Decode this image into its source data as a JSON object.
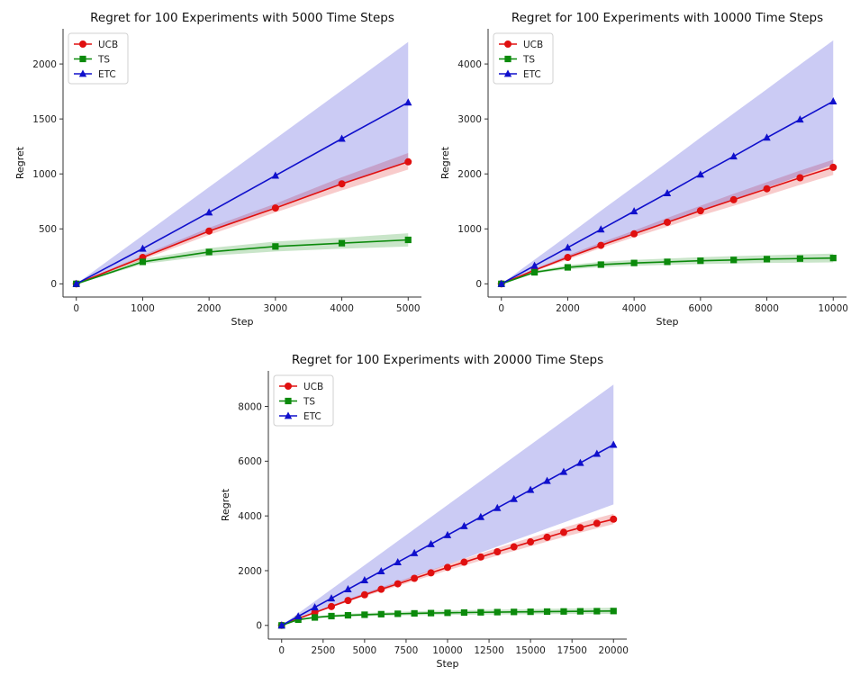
{
  "chart_data": [
    {
      "type": "line",
      "title": "Regret for 100 Experiments with 5000 Time Steps",
      "xlabel": "Step",
      "ylabel": "Regret",
      "xlim": [
        -200,
        5200
      ],
      "ylim": [
        -120,
        2320
      ],
      "xticks": [
        0,
        1000,
        2000,
        3000,
        4000,
        5000
      ],
      "xtick_labels": [
        "0",
        "1000",
        "2000",
        "3000",
        "4000",
        "5000"
      ],
      "yticks": [
        0,
        500,
        1000,
        1500,
        2000
      ],
      "ytick_labels": [
        "0",
        "500",
        "1000",
        "1500",
        "2000"
      ],
      "legend_position": "top-left",
      "grid": false,
      "series": [
        {
          "name": "UCB",
          "color": "#e01010",
          "marker": "circle",
          "x": [
            0,
            1000,
            2000,
            3000,
            4000,
            5000
          ],
          "values": [
            0,
            240,
            480,
            690,
            910,
            1110
          ],
          "band": {
            "lower": [
              0,
              220,
              445,
              650,
              850,
              1040
            ],
            "upper": [
              0,
              260,
              510,
              730,
              970,
              1190
            ]
          }
        },
        {
          "name": "TS",
          "color": "#0b8a0b",
          "marker": "square",
          "x": [
            0,
            1000,
            2000,
            3000,
            4000,
            5000
          ],
          "values": [
            0,
            200,
            290,
            340,
            370,
            400
          ],
          "band": {
            "lower": [
              0,
              180,
              255,
              295,
              320,
              340
            ],
            "upper": [
              0,
              225,
              325,
              385,
              420,
              460
            ]
          }
        },
        {
          "name": "ETC",
          "color": "#1010cc",
          "marker": "triangle",
          "x": [
            0,
            1000,
            2000,
            3000,
            4000,
            5000
          ],
          "values": [
            0,
            320,
            650,
            985,
            1320,
            1650
          ],
          "band": {
            "lower": [
              0,
              250,
              480,
              700,
              910,
              1110
            ],
            "upper": [
              0,
              440,
              880,
              1320,
              1760,
              2200
            ]
          }
        }
      ]
    },
    {
      "type": "line",
      "title": "Regret for 100 Experiments with 10000 Time Steps",
      "xlabel": "Step",
      "ylabel": "Regret",
      "xlim": [
        -400,
        10400
      ],
      "ylim": [
        -240,
        4640
      ],
      "xticks": [
        0,
        2000,
        4000,
        6000,
        8000,
        10000
      ],
      "xtick_labels": [
        "0",
        "2000",
        "4000",
        "6000",
        "8000",
        "10000"
      ],
      "yticks": [
        0,
        1000,
        2000,
        3000,
        4000
      ],
      "ytick_labels": [
        "0",
        "1000",
        "2000",
        "3000",
        "4000"
      ],
      "legend_position": "top-left",
      "grid": false,
      "series": [
        {
          "name": "UCB",
          "color": "#e01010",
          "marker": "circle",
          "x": [
            0,
            1000,
            2000,
            3000,
            4000,
            5000,
            6000,
            7000,
            8000,
            9000,
            10000
          ],
          "values": [
            0,
            250,
            480,
            700,
            910,
            1120,
            1330,
            1530,
            1730,
            1930,
            2120
          ],
          "band": {
            "lower": [
              0,
              230,
              440,
              650,
              850,
              1040,
              1240,
              1420,
              1610,
              1800,
              1980
            ],
            "upper": [
              0,
              270,
              520,
              750,
              970,
              1200,
              1420,
              1640,
              1850,
              2060,
              2260
            ]
          }
        },
        {
          "name": "TS",
          "color": "#0b8a0b",
          "marker": "square",
          "x": [
            0,
            1000,
            2000,
            3000,
            4000,
            5000,
            6000,
            7000,
            8000,
            9000,
            10000
          ],
          "values": [
            0,
            210,
            300,
            350,
            380,
            400,
            420,
            435,
            450,
            460,
            470
          ],
          "band": {
            "lower": [
              0,
              190,
              265,
              305,
              330,
              345,
              360,
              370,
              380,
              385,
              390
            ],
            "upper": [
              0,
              235,
              340,
              400,
              435,
              460,
              485,
              505,
              520,
              535,
              550
            ]
          }
        },
        {
          "name": "ETC",
          "color": "#1010cc",
          "marker": "triangle",
          "x": [
            0,
            1000,
            2000,
            3000,
            4000,
            5000,
            6000,
            7000,
            8000,
            9000,
            10000
          ],
          "values": [
            0,
            330,
            660,
            990,
            1320,
            1650,
            1990,
            2320,
            2660,
            2990,
            3320
          ],
          "band": {
            "lower": [
              0,
              250,
              470,
              690,
              900,
              1110,
              1330,
              1540,
              1750,
              1960,
              2170
            ],
            "upper": [
              0,
              440,
              880,
              1330,
              1770,
              2210,
              2660,
              3100,
              3540,
              3990,
              4430
            ]
          }
        }
      ]
    },
    {
      "type": "line",
      "title": "Regret for 100 Experiments with 20000 Time Steps",
      "xlabel": "Step",
      "ylabel": "Regret",
      "xlim": [
        -800,
        20800
      ],
      "ylim": [
        -500,
        9300
      ],
      "xticks": [
        0,
        2500,
        5000,
        7500,
        10000,
        12500,
        15000,
        17500,
        20000
      ],
      "xtick_labels": [
        "0",
        "2500",
        "5000",
        "7500",
        "10000",
        "12500",
        "15000",
        "17500",
        "20000"
      ],
      "yticks": [
        0,
        2000,
        4000,
        6000,
        8000
      ],
      "ytick_labels": [
        "0",
        "2000",
        "4000",
        "6000",
        "8000"
      ],
      "legend_position": "top-left",
      "grid": false,
      "series": [
        {
          "name": "UCB",
          "color": "#e01010",
          "marker": "circle",
          "x": [
            0,
            1000,
            2000,
            3000,
            4000,
            5000,
            6000,
            7000,
            8000,
            9000,
            10000,
            11000,
            12000,
            13000,
            14000,
            15000,
            16000,
            17000,
            18000,
            19000,
            20000
          ],
          "values": [
            0,
            250,
            470,
            690,
            910,
            1120,
            1320,
            1520,
            1720,
            1920,
            2120,
            2310,
            2500,
            2690,
            2870,
            3050,
            3220,
            3400,
            3570,
            3730,
            3880
          ],
          "band": {
            "lower": [
              0,
              230,
              440,
              650,
              860,
              1060,
              1250,
              1440,
              1630,
              1820,
              2010,
              2190,
              2370,
              2550,
              2720,
              2890,
              3060,
              3230,
              3390,
              3550,
              3700
            ],
            "upper": [
              0,
              270,
              500,
              730,
              960,
              1180,
              1390,
              1600,
              1810,
              2020,
              2230,
              2430,
              2630,
              2830,
              3020,
              3210,
              3390,
              3570,
              3750,
              3920,
              4080
            ]
          }
        },
        {
          "name": "TS",
          "color": "#0b8a0b",
          "marker": "square",
          "x": [
            0,
            1000,
            2000,
            3000,
            4000,
            5000,
            6000,
            7000,
            8000,
            9000,
            10000,
            11000,
            12000,
            13000,
            14000,
            15000,
            16000,
            17000,
            18000,
            19000,
            20000
          ],
          "values": [
            0,
            210,
            290,
            340,
            370,
            390,
            410,
            425,
            440,
            450,
            460,
            470,
            478,
            485,
            492,
            498,
            505,
            510,
            515,
            520,
            525
          ],
          "band": {
            "lower": [
              0,
              190,
              255,
              295,
              320,
              335,
              350,
              360,
              370,
              378,
              385,
              390,
              395,
              400,
              405,
              408,
              412,
              415,
              418,
              420,
              422
            ],
            "upper": [
              0,
              235,
              330,
              390,
              425,
              450,
              475,
              495,
              515,
              530,
              545,
              555,
              565,
              575,
              585,
              595,
              605,
              615,
              625,
              635,
              645
            ]
          }
        },
        {
          "name": "ETC",
          "color": "#1010cc",
          "marker": "triangle",
          "x": [
            0,
            1000,
            2000,
            3000,
            4000,
            5000,
            6000,
            7000,
            8000,
            9000,
            10000,
            11000,
            12000,
            13000,
            14000,
            15000,
            16000,
            17000,
            18000,
            19000,
            20000
          ],
          "values": [
            0,
            330,
            660,
            990,
            1320,
            1650,
            1980,
            2310,
            2640,
            2970,
            3300,
            3630,
            3960,
            4290,
            4620,
            4950,
            5280,
            5610,
            5940,
            6270,
            6600
          ],
          "band": {
            "lower": [
              0,
              230,
              460,
              680,
              900,
              1120,
              1340,
              1560,
              1780,
              2000,
              2220,
              2440,
              2660,
              2880,
              3100,
              3320,
              3540,
              3760,
              3980,
              4200,
              4420
            ],
            "upper": [
              0,
              440,
              880,
              1320,
              1760,
              2200,
              2640,
              3080,
              3520,
              3960,
              4400,
              4840,
              5280,
              5720,
              6160,
              6600,
              7040,
              7480,
              7920,
              8360,
              8800
            ]
          }
        }
      ]
    }
  ]
}
